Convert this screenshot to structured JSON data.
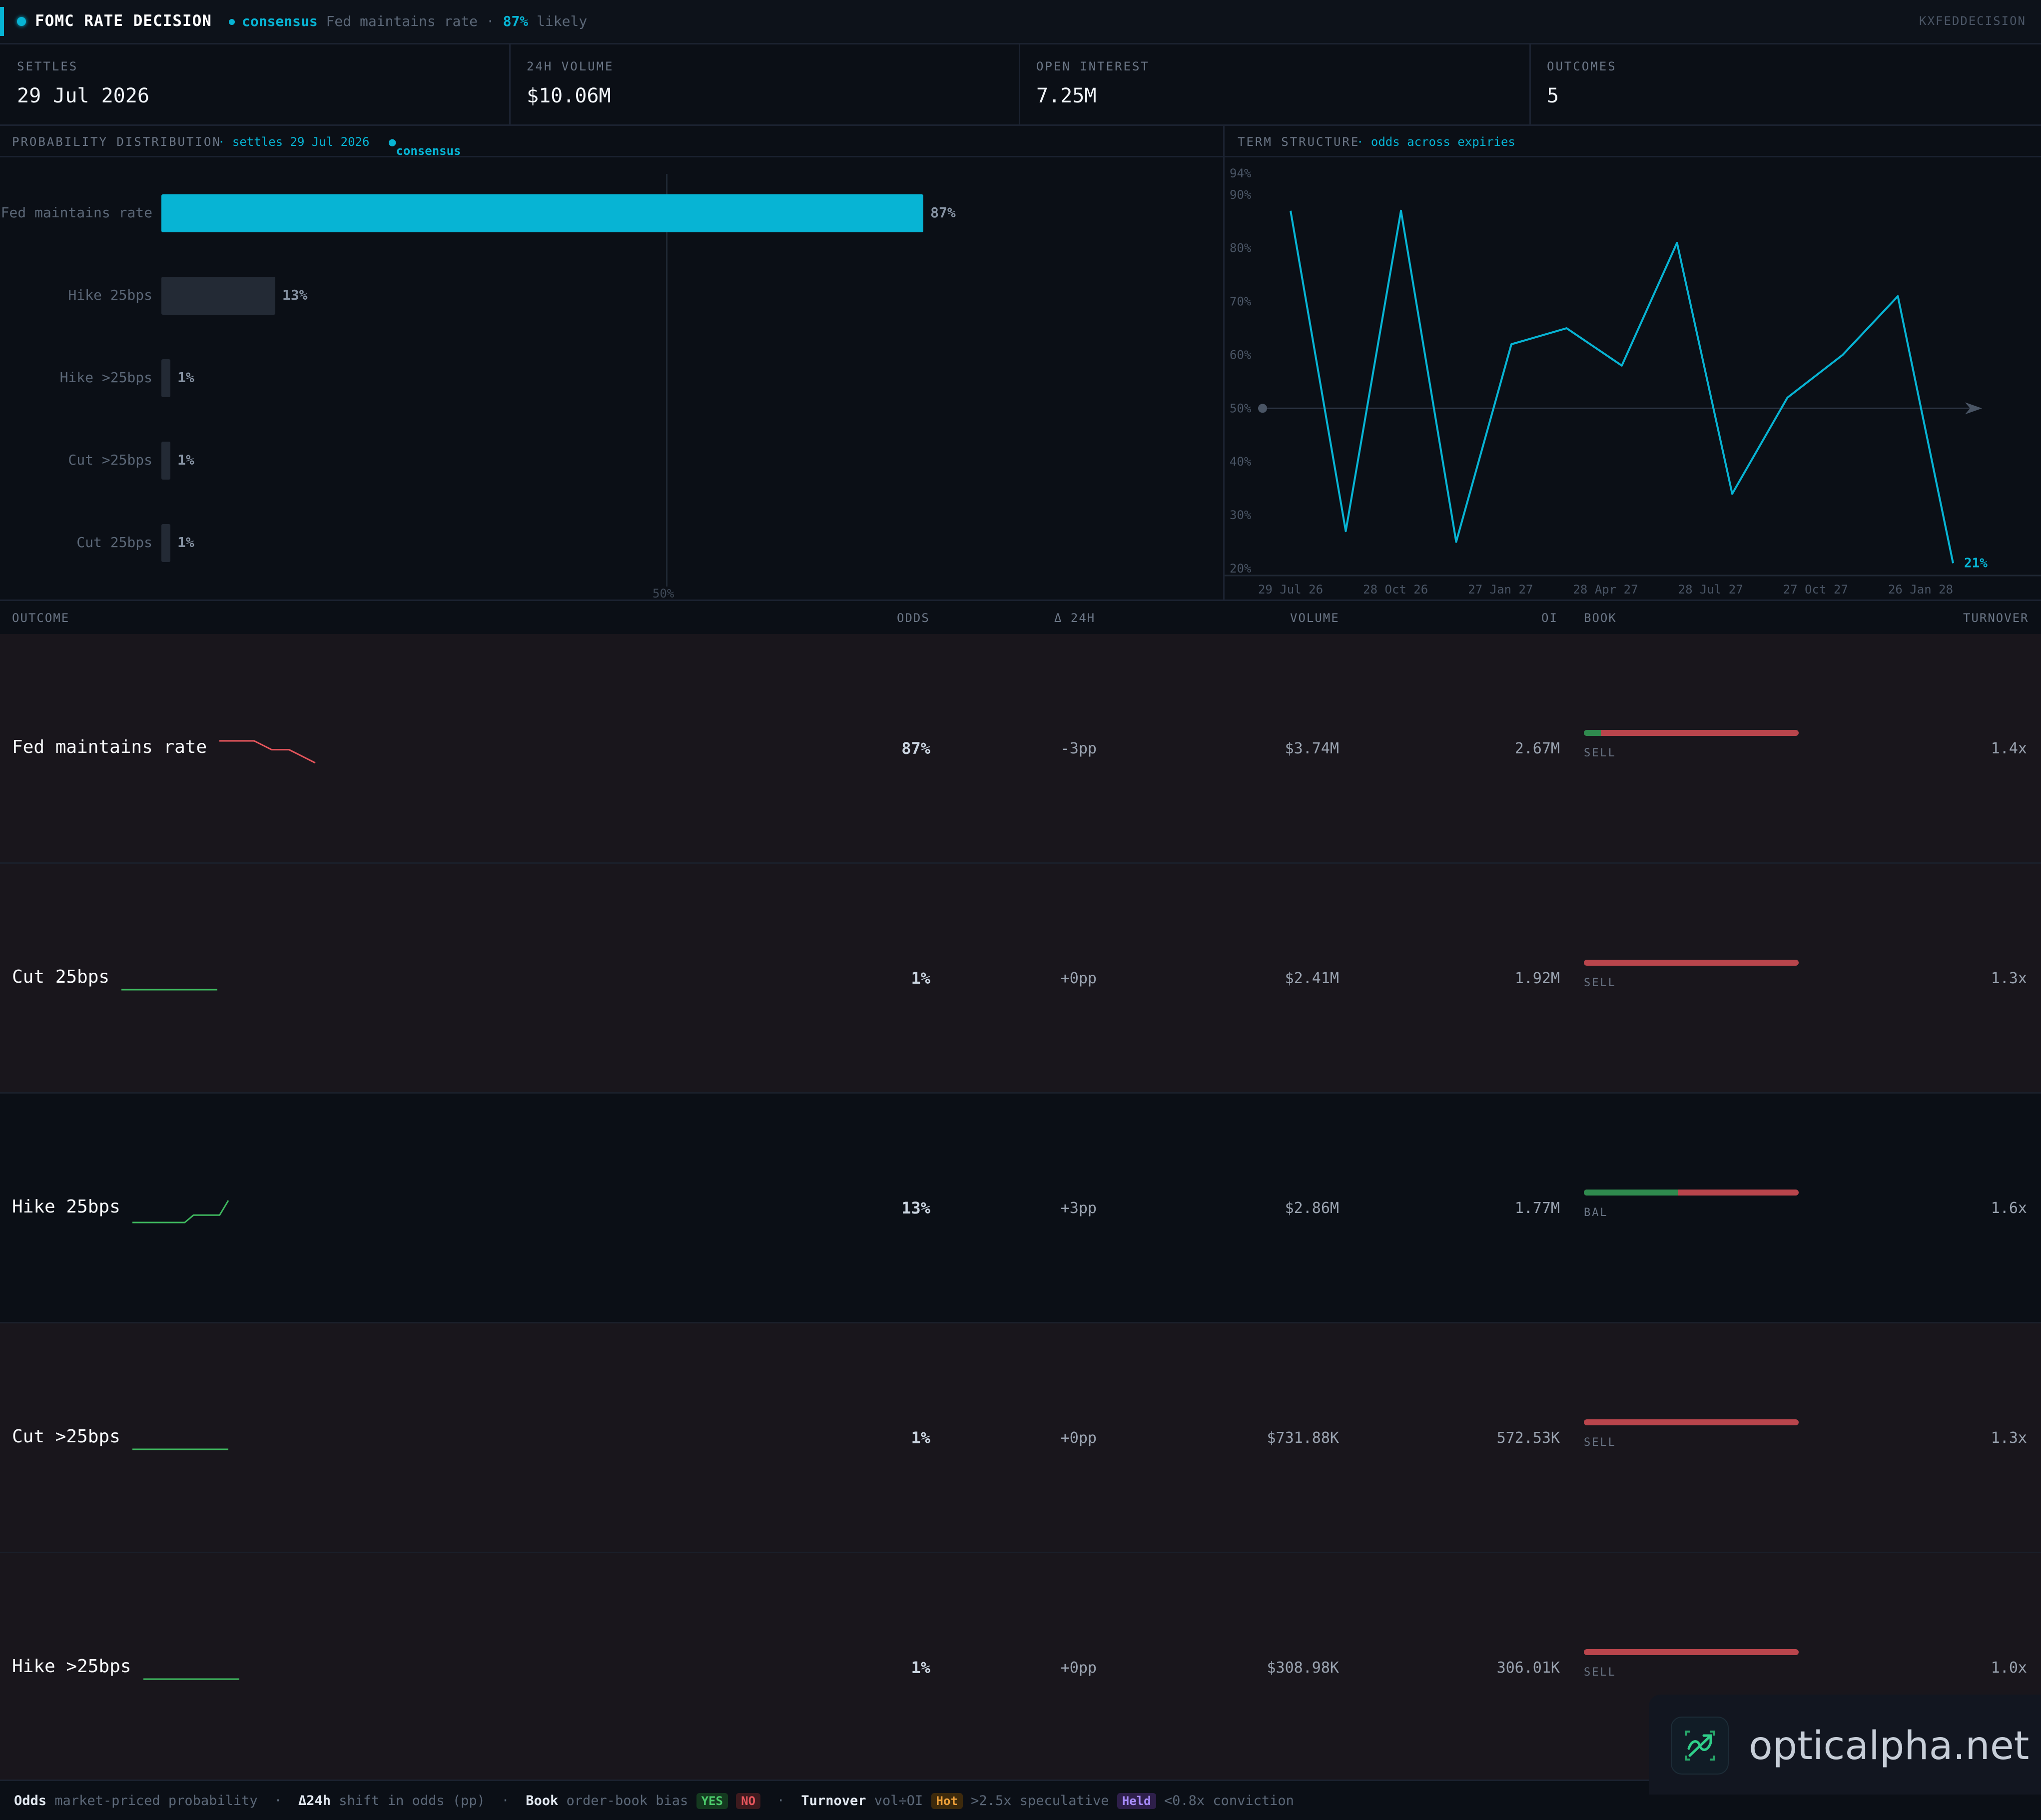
{
  "header": {
    "title": "FOMC RATE DECISION",
    "consensus_label": "consensus",
    "consensus_outcome": "Fed maintains rate",
    "consensus_sep": "·",
    "consensus_pct": "87%",
    "consensus_suffix": "likely",
    "ticker": "KXFEDDECISION"
  },
  "stats": [
    {
      "label": "SETTLES",
      "value": "29 Jul 2026"
    },
    {
      "label": "24H VOLUME",
      "value": "$10.06M"
    },
    {
      "label": "OPEN INTEREST",
      "value": "7.25M"
    },
    {
      "label": "OUTCOMES",
      "value": "5"
    }
  ],
  "distribution": {
    "title": "PROBABILITY DISTRIBUTION",
    "settles": "· settles 29 Jul 2026",
    "consensus": "consensus",
    "midline_label": "50%",
    "bars": [
      {
        "label": "Fed maintains rate",
        "value": 87,
        "display": "87%",
        "highlight": true
      },
      {
        "label": "Hike 25bps",
        "value": 13,
        "display": "13%",
        "highlight": false
      },
      {
        "label": "Hike >25bps",
        "value": 1,
        "display": "1%",
        "highlight": false
      },
      {
        "label": "Cut >25bps",
        "value": 1,
        "display": "1%",
        "highlight": false
      },
      {
        "label": "Cut 25bps",
        "value": 1,
        "display": "1%",
        "highlight": false
      }
    ]
  },
  "chart_data": {
    "type": "line",
    "title": "TERM STRUCTURE",
    "subtitle": "· odds across expiries",
    "x_ticks": [
      "29 Jul 26",
      "28 Oct 26",
      "27 Jan 27",
      "28 Apr 27",
      "28 Jul 27",
      "27 Oct 27",
      "26 Jan 28"
    ],
    "y_ticks": [
      "94%",
      "90%",
      "80%",
      "70%",
      "60%",
      "50%",
      "40%",
      "30%",
      "20%"
    ],
    "ylim": [
      20,
      94
    ],
    "reference_line": 50,
    "series": [
      {
        "values": [
          87,
          27,
          87,
          25,
          62,
          65,
          58,
          81,
          34,
          52,
          60,
          71,
          21
        ]
      }
    ],
    "last_label": "21%",
    "color": "#07b4d4"
  },
  "table": {
    "columns": [
      "OUTCOME",
      "ODDS",
      "Δ 24H",
      "VOLUME",
      "OI",
      "BOOK",
      "TURNOVER"
    ],
    "rows": [
      {
        "name": "Fed maintains rate",
        "odds": "87%",
        "delta": "-3pp",
        "volume": "$3.74M",
        "oi": "2.67M",
        "book_yes": 0.08,
        "bias": "SELL",
        "turnover": "1.4x",
        "trend": "down",
        "spark": [
          90,
          90,
          90,
          90,
          90,
          89,
          88,
          88,
          88,
          87,
          86,
          85
        ]
      },
      {
        "name": "Cut 25bps",
        "odds": "1%",
        "delta": "+0pp",
        "volume": "$2.41M",
        "oi": "1.92M",
        "book_yes": 0.0,
        "bias": "SELL",
        "turnover": "1.3x",
        "trend": "up",
        "spark": [
          1,
          1,
          1,
          1,
          1,
          1,
          1,
          1,
          1,
          1,
          1,
          1
        ]
      },
      {
        "name": "Hike 25bps",
        "odds": "13%",
        "delta": "+3pp",
        "volume": "$2.86M",
        "oi": "1.77M",
        "book_yes": 0.44,
        "bias": "BAL",
        "turnover": "1.6x",
        "trend": "up",
        "spark": [
          10,
          10,
          10,
          10,
          10,
          10,
          10,
          11,
          11,
          11,
          11,
          13
        ]
      },
      {
        "name": "Cut >25bps",
        "odds": "1%",
        "delta": "+0pp",
        "volume": "$731.88K",
        "oi": "572.53K",
        "book_yes": 0.0,
        "bias": "SELL",
        "turnover": "1.3x",
        "trend": "up",
        "spark": [
          1,
          1,
          1,
          1,
          1,
          1,
          1,
          1,
          1,
          1,
          1,
          1
        ]
      },
      {
        "name": "Hike >25bps",
        "odds": "1%",
        "delta": "+0pp",
        "volume": "$308.98K",
        "oi": "306.01K",
        "book_yes": 0.0,
        "bias": "SELL",
        "turnover": "1.0x",
        "trend": "up",
        "spark": [
          1,
          1,
          1,
          1,
          1,
          1,
          1,
          1,
          1,
          1,
          1,
          1
        ]
      }
    ]
  },
  "legend": {
    "odds_key": "Odds",
    "odds_desc": "market-priced probability",
    "delta_key": "Δ24h",
    "delta_desc": "shift in odds (pp)",
    "book_key": "Book",
    "book_desc": "order-book bias",
    "yes": "YES",
    "no": "NO",
    "turnover_key": "Turnover",
    "turnover_desc": "vol÷OI",
    "hot": "Hot",
    "hot_desc": ">2.5x speculative",
    "held": "Held",
    "held_desc": "<0.8x conviction",
    "sep": "·"
  },
  "watermark": {
    "text": "opticalpha.net"
  },
  "colors": {
    "accent": "#07b4d4",
    "up": "#3fb95f",
    "down": "#e5555c",
    "sell": "#b9454c",
    "buy": "#2f8a4e"
  }
}
